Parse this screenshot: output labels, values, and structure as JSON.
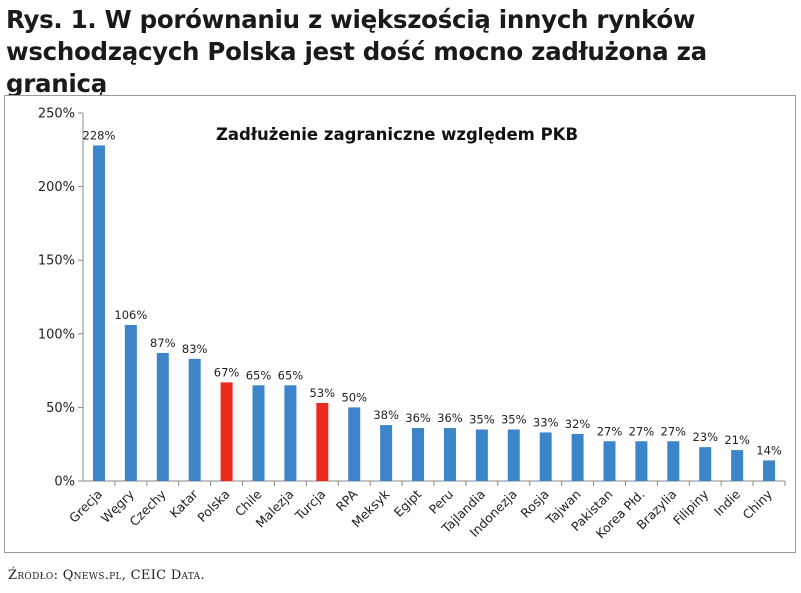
{
  "figure": {
    "title_line1": "Rys. 1. W porównaniu z większością innych rynków",
    "title_line2": "wschodzących Polska jest dość mocno zadłużona za granicą",
    "source": "Źródło: Qnews.pl, CEIC Data."
  },
  "colors": {
    "default_bar": "#3e84c9",
    "highlight_bar": "#ec2a1d",
    "axis": "#888888",
    "text": "#222222"
  },
  "chart_data": {
    "type": "bar",
    "title": "Zadłużenie zagraniczne względem PKB",
    "xlabel": "",
    "ylabel": "",
    "ylim": [
      0,
      250
    ],
    "yticks": [
      0,
      50,
      100,
      150,
      200,
      250
    ],
    "ytick_labels": [
      "0%",
      "50%",
      "100%",
      "150%",
      "200%",
      "250%"
    ],
    "grid": false,
    "categories": [
      "Grecja",
      "Węgry",
      "Czechy",
      "Katar",
      "Polska",
      "Chile",
      "Malezja",
      "Turcja",
      "RPA",
      "Meksyk",
      "Egipt",
      "Peru",
      "Tajlandia",
      "Indonezja",
      "Rosja",
      "Tajwan",
      "Pakistan",
      "Korea Płd.",
      "Brazylia",
      "Filipiny",
      "Indie",
      "Chiny"
    ],
    "values": [
      228,
      106,
      87,
      83,
      67,
      65,
      65,
      53,
      50,
      38,
      36,
      36,
      35,
      35,
      33,
      32,
      27,
      27,
      27,
      23,
      21,
      14
    ],
    "data_labels": [
      "228%",
      "106%",
      "87%",
      "83%",
      "67%",
      "65%",
      "65%",
      "53%",
      "50%",
      "38%",
      "36%",
      "36%",
      "35%",
      "35%",
      "33%",
      "32%",
      "27%",
      "27%",
      "27%",
      "23%",
      "21%",
      "14%"
    ],
    "highlighted": [
      "Polska",
      "Turcja"
    ]
  }
}
